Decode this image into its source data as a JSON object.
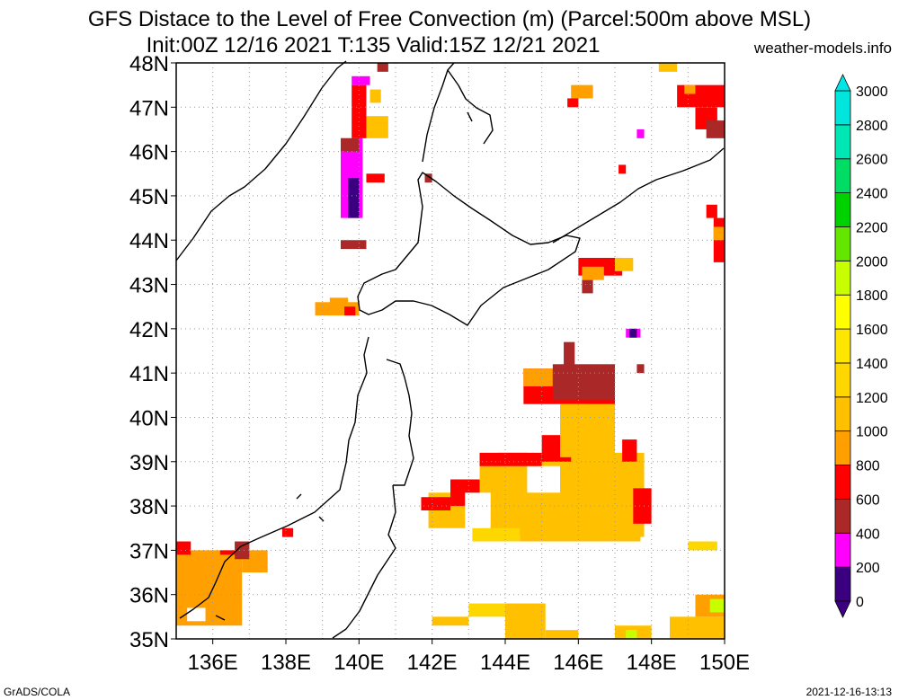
{
  "title_line1": "GFS Distace to the Level of Free Convection (m) (Parcel:500m above MSL)",
  "title_line2": "Init:00Z 12/16 2021 T:135 Valid:15Z 12/21 2021",
  "site": "weather-models.info",
  "footer_left": "GrADS/COLA",
  "footer_right": "2021-12-16-13:13",
  "map": {
    "lon_range": [
      135,
      150
    ],
    "lat_range": [
      35,
      48
    ],
    "lat_labels": [
      "35N",
      "36N",
      "37N",
      "38N",
      "39N",
      "40N",
      "41N",
      "42N",
      "43N",
      "44N",
      "45N",
      "46N",
      "47N",
      "48N"
    ],
    "lon_labels": [
      "136E",
      "138E",
      "140E",
      "142E",
      "144E",
      "146E",
      "148E",
      "150E"
    ],
    "lon_values": [
      136,
      138,
      140,
      142,
      144,
      146,
      148,
      150
    ]
  },
  "colorbar": {
    "labels": [
      "0",
      "200",
      "400",
      "600",
      "800",
      "1000",
      "1200",
      "1400",
      "1600",
      "1800",
      "2000",
      "2200",
      "2400",
      "2600",
      "2800",
      "3000"
    ],
    "colors": [
      "#3b0080",
      "#ff00ff",
      "#aa2828",
      "#ff0000",
      "#ffa000",
      "#ffc000",
      "#ffd700",
      "#ffe600",
      "#ffff00",
      "#c8ff00",
      "#64e600",
      "#00d200",
      "#00dc64",
      "#00e6b4",
      "#00e6dc",
      "#00e6e6"
    ]
  },
  "field": [
    {
      "lon": [
        140.7,
        141.0
      ],
      "lat": [
        35.9,
        37.2
      ],
      "color": "#ffffff"
    },
    {
      "lon": [
        143.3,
        147.8
      ],
      "lat": [
        37.3,
        39.2
      ],
      "color": "#ffc000"
    },
    {
      "lon": [
        144.6,
        145.5
      ],
      "lat": [
        38.3,
        38.9
      ],
      "color": "#ffffff"
    },
    {
      "lon": [
        141.9,
        143.3
      ],
      "lat": [
        37.5,
        38.3
      ],
      "color": "#ffc000"
    },
    {
      "lon": [
        143.3,
        145.0
      ],
      "lat": [
        38.9,
        39.2
      ],
      "color": "#ff0000"
    },
    {
      "lon": [
        145.0,
        145.8
      ],
      "lat": [
        39.0,
        39.6
      ],
      "color": "#ff0000"
    },
    {
      "lon": [
        145.5,
        147.0
      ],
      "lat": [
        39.1,
        40.3
      ],
      "color": "#ffc000"
    },
    {
      "lon": [
        147.5,
        148.0
      ],
      "lat": [
        37.6,
        38.4
      ],
      "color": "#ff0000"
    },
    {
      "lon": [
        144.5,
        147.0
      ],
      "lat": [
        40.3,
        41.1
      ],
      "color": "#ff0000"
    },
    {
      "lon": [
        144.5,
        145.3
      ],
      "lat": [
        40.7,
        41.1
      ],
      "color": "#ffa000"
    },
    {
      "lon": [
        145.3,
        147.0
      ],
      "lat": [
        40.4,
        41.2
      ],
      "color": "#aa2828"
    },
    {
      "lon": [
        145.6,
        145.9
      ],
      "lat": [
        40.8,
        41.7
      ],
      "color": "#aa2828"
    },
    {
      "lon": [
        145.5,
        146.2
      ],
      "lat": [
        39.7,
        40.3
      ],
      "color": "#ffc000"
    },
    {
      "lon": [
        141.7,
        142.5
      ],
      "lat": [
        37.9,
        38.2
      ],
      "color": "#ff0000"
    },
    {
      "lon": [
        143.1,
        144.4
      ],
      "lat": [
        37.2,
        37.5
      ],
      "color": "#ffd700"
    },
    {
      "lon": [
        144.4,
        147.7
      ],
      "lat": [
        37.2,
        37.5
      ],
      "color": "#ffc000"
    },
    {
      "lon": [
        147.2,
        147.6
      ],
      "lat": [
        39.0,
        39.5
      ],
      "color": "#ff0000"
    },
    {
      "lon": [
        143.8,
        144.6
      ],
      "lat": [
        39.1,
        39.2
      ],
      "color": "#ff0000"
    },
    {
      "lon": [
        142.5,
        143.3
      ],
      "lat": [
        38.0,
        38.6
      ],
      "color": "#ff0000"
    },
    {
      "lon": [
        142.9,
        143.6
      ],
      "lat": [
        37.5,
        38.3
      ],
      "color": "#ffffff"
    },
    {
      "lon": [
        135.0,
        136.8
      ],
      "lat": [
        35.3,
        37.0
      ],
      "color": "#ffa000"
    },
    {
      "lon": [
        136.8,
        137.5
      ],
      "lat": [
        36.5,
        37.0
      ],
      "color": "#ffa000"
    },
    {
      "lon": [
        135.0,
        135.4
      ],
      "lat": [
        36.9,
        37.2
      ],
      "color": "#ff0000"
    },
    {
      "lon": [
        136.2,
        136.8
      ],
      "lat": [
        36.9,
        37.0
      ],
      "color": "#ff0000"
    },
    {
      "lon": [
        136.6,
        137.0
      ],
      "lat": [
        36.8,
        37.2
      ],
      "color": "#aa2828"
    },
    {
      "lon": [
        135.3,
        135.8
      ],
      "lat": [
        35.4,
        35.7
      ],
      "color": "#ffffff"
    },
    {
      "lon": [
        137.9,
        138.2
      ],
      "lat": [
        37.3,
        37.5
      ],
      "color": "#ff0000"
    },
    {
      "lon": [
        138.8,
        140.0
      ],
      "lat": [
        42.3,
        42.6
      ],
      "color": "#ffa000"
    },
    {
      "lon": [
        139.2,
        139.7
      ],
      "lat": [
        42.5,
        42.7
      ],
      "color": "#ffa000"
    },
    {
      "lon": [
        139.6,
        139.9
      ],
      "lat": [
        42.3,
        42.5
      ],
      "color": "#ff0000"
    },
    {
      "lon": [
        139.5,
        140.2
      ],
      "lat": [
        43.8,
        44.0
      ],
      "color": "#aa2828"
    },
    {
      "lon": [
        139.5,
        140.1
      ],
      "lat": [
        44.5,
        46.3
      ],
      "color": "#ff00ff"
    },
    {
      "lon": [
        139.7,
        140.0
      ],
      "lat": [
        44.5,
        45.4
      ],
      "color": "#3b0080"
    },
    {
      "lon": [
        139.5,
        140.0
      ],
      "lat": [
        46.0,
        46.3
      ],
      "color": "#aa2828"
    },
    {
      "lon": [
        139.8,
        140.2
      ],
      "lat": [
        46.3,
        47.5
      ],
      "color": "#ff0000"
    },
    {
      "lon": [
        140.2,
        140.8
      ],
      "lat": [
        46.3,
        46.8
      ],
      "color": "#ffc000"
    },
    {
      "lon": [
        140.3,
        140.6
      ],
      "lat": [
        47.1,
        47.4
      ],
      "color": "#ffc000"
    },
    {
      "lon": [
        140.2,
        140.7
      ],
      "lat": [
        45.3,
        45.5
      ],
      "color": "#ff0000"
    },
    {
      "lon": [
        139.8,
        140.3
      ],
      "lat": [
        47.5,
        47.7
      ],
      "color": "#ff00ff"
    },
    {
      "lon": [
        140.5,
        140.8
      ],
      "lat": [
        47.8,
        48.0
      ],
      "color": "#aa2828"
    },
    {
      "lon": [
        141.8,
        142.0
      ],
      "lat": [
        45.3,
        45.5
      ],
      "color": "#aa2828"
    },
    {
      "lon": [
        145.8,
        146.4
      ],
      "lat": [
        47.2,
        47.5
      ],
      "color": "#ffa000"
    },
    {
      "lon": [
        145.7,
        146.0
      ],
      "lat": [
        47.0,
        47.2
      ],
      "color": "#ff0000"
    },
    {
      "lon": [
        146.0,
        147.2
      ],
      "lat": [
        43.2,
        43.6
      ],
      "color": "#ff0000"
    },
    {
      "lon": [
        146.1,
        146.7
      ],
      "lat": [
        43.1,
        43.4
      ],
      "color": "#ffa000"
    },
    {
      "lon": [
        147.0,
        147.5
      ],
      "lat": [
        43.3,
        43.6
      ],
      "color": "#ffc000"
    },
    {
      "lon": [
        146.1,
        146.4
      ],
      "lat": [
        42.8,
        43.1
      ],
      "color": "#aa2828"
    },
    {
      "lon": [
        147.1,
        147.3
      ],
      "lat": [
        45.5,
        45.7
      ],
      "color": "#ff0000"
    },
    {
      "lon": [
        147.6,
        147.8
      ],
      "lat": [
        46.3,
        46.5
      ],
      "color": "#ff00ff"
    },
    {
      "lon": [
        147.3,
        147.7
      ],
      "lat": [
        41.8,
        42.0
      ],
      "color": "#ff00ff"
    },
    {
      "lon": [
        147.4,
        147.6
      ],
      "lat": [
        41.8,
        42.0
      ],
      "color": "#3b0080"
    },
    {
      "lon": [
        147.6,
        147.8
      ],
      "lat": [
        41.0,
        41.2
      ],
      "color": "#aa2828"
    },
    {
      "lon": [
        148.2,
        148.7
      ],
      "lat": [
        47.8,
        48.0
      ],
      "color": "#ffc000"
    },
    {
      "lon": [
        148.7,
        150.0
      ],
      "lat": [
        47.0,
        47.5
      ],
      "color": "#ff0000"
    },
    {
      "lon": [
        148.9,
        149.2
      ],
      "lat": [
        47.3,
        47.5
      ],
      "color": "#ffa000"
    },
    {
      "lon": [
        149.2,
        149.8
      ],
      "lat": [
        46.5,
        47.0
      ],
      "color": "#ff0000"
    },
    {
      "lon": [
        149.5,
        150.0
      ],
      "lat": [
        46.3,
        46.7
      ],
      "color": "#aa2828"
    },
    {
      "lon": [
        149.7,
        150.0
      ],
      "lat": [
        43.5,
        44.5
      ],
      "color": "#ff0000"
    },
    {
      "lon": [
        149.7,
        150.0
      ],
      "lat": [
        44.0,
        44.3
      ],
      "color": "#ffa000"
    },
    {
      "lon": [
        149.5,
        149.8
      ],
      "lat": [
        44.5,
        44.8
      ],
      "color": "#ff0000"
    },
    {
      "lon": [
        149.0,
        149.8
      ],
      "lat": [
        37.0,
        37.2
      ],
      "color": "#ffd700"
    },
    {
      "lon": [
        143.0,
        144.0
      ],
      "lat": [
        35.5,
        35.8
      ],
      "color": "#ffd700"
    },
    {
      "lon": [
        144.0,
        145.1
      ],
      "lat": [
        35.0,
        35.8
      ],
      "color": "#ffc000"
    },
    {
      "lon": [
        145.1,
        146.0
      ],
      "lat": [
        35.0,
        35.2
      ],
      "color": "#ffc000"
    },
    {
      "lon": [
        142.0,
        143.0
      ],
      "lat": [
        35.3,
        35.5
      ],
      "color": "#ffc000"
    },
    {
      "lon": [
        147.0,
        148.0
      ],
      "lat": [
        35.0,
        35.3
      ],
      "color": "#ffc000"
    },
    {
      "lon": [
        148.5,
        150.0
      ],
      "lat": [
        35.0,
        35.5
      ],
      "color": "#ffc000"
    },
    {
      "lon": [
        149.2,
        150.0
      ],
      "lat": [
        35.5,
        36.0
      ],
      "color": "#ffa000"
    },
    {
      "lon": [
        149.6,
        150.0
      ],
      "lat": [
        35.6,
        35.9
      ],
      "color": "#c8ff00"
    },
    {
      "lon": [
        147.3,
        147.6
      ],
      "lat": [
        35.0,
        35.2
      ],
      "color": "#c8ff00"
    }
  ]
}
